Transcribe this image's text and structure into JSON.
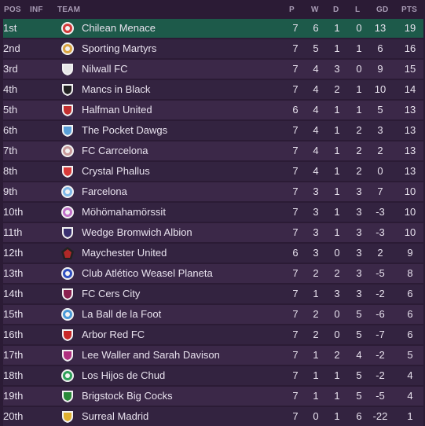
{
  "header": {
    "pos": "POS",
    "inf": "INF",
    "team": "TEAM",
    "p": "P",
    "w": "W",
    "d": "D",
    "l": "L",
    "gd": "GD",
    "pts": "PTS"
  },
  "rows": [
    {
      "pos": "1st",
      "team": "Chilean Menace",
      "p": "7",
      "w": "6",
      "d": "1",
      "l": "0",
      "gd": "13",
      "pts": "19",
      "icon": "target-badge-icon",
      "color": "#d23a3a"
    },
    {
      "pos": "2nd",
      "team": "Sporting Martyrs",
      "p": "7",
      "w": "5",
      "d": "1",
      "l": "1",
      "gd": "6",
      "pts": "16",
      "icon": "sun-badge-icon",
      "color": "#d9a441"
    },
    {
      "pos": "3rd",
      "team": "Nilwall FC",
      "p": "7",
      "w": "4",
      "d": "3",
      "l": "0",
      "gd": "9",
      "pts": "15",
      "icon": "striped-shield-icon",
      "color": "#e6e6e6"
    },
    {
      "pos": "4th",
      "team": "Mancs in Black",
      "p": "7",
      "w": "4",
      "d": "2",
      "l": "1",
      "gd": "10",
      "pts": "14",
      "icon": "split-shield-icon",
      "color": "#222222"
    },
    {
      "pos": "5th",
      "team": "Halfman United",
      "p": "6",
      "w": "4",
      "d": "1",
      "l": "1",
      "gd": "5",
      "pts": "13",
      "icon": "diagonal-shield-icon",
      "color": "#c23030"
    },
    {
      "pos": "6th",
      "team": "The Pocket Dawgs",
      "p": "7",
      "w": "4",
      "d": "1",
      "l": "2",
      "gd": "3",
      "pts": "13",
      "icon": "diagonal-shield-icon",
      "color": "#5aa0d8"
    },
    {
      "pos": "7th",
      "team": "FC Carrcelona",
      "p": "7",
      "w": "4",
      "d": "1",
      "l": "2",
      "gd": "2",
      "pts": "13",
      "icon": "ring-badge-icon",
      "color": "#c89a9a"
    },
    {
      "pos": "8th",
      "team": "Crystal Phallus",
      "p": "7",
      "w": "4",
      "d": "1",
      "l": "2",
      "gd": "0",
      "pts": "13",
      "icon": "crest-shield-icon",
      "color": "#d83a3a"
    },
    {
      "pos": "9th",
      "team": "Farcelona",
      "p": "7",
      "w": "3",
      "d": "1",
      "l": "3",
      "gd": "7",
      "pts": "10",
      "icon": "round-badge-icon",
      "color": "#7fb8e8"
    },
    {
      "pos": "10th",
      "team": "Möhömahamörssit",
      "p": "7",
      "w": "3",
      "d": "1",
      "l": "3",
      "gd": "-3",
      "pts": "10",
      "icon": "ring-badge-icon",
      "color": "#c070c8"
    },
    {
      "pos": "11th",
      "team": "Wedge Bromwich Albion",
      "p": "7",
      "w": "3",
      "d": "1",
      "l": "3",
      "gd": "-3",
      "pts": "10",
      "icon": "wedge-shield-icon",
      "color": "#3a3070"
    },
    {
      "pos": "12th",
      "team": "Maychester United",
      "p": "6",
      "w": "3",
      "d": "0",
      "l": "3",
      "gd": "2",
      "pts": "9",
      "icon": "pentagon-badge-icon",
      "color": "#b02828"
    },
    {
      "pos": "13th",
      "team": "Club Atlético Weasel Planeta",
      "p": "7",
      "w": "2",
      "d": "2",
      "l": "3",
      "gd": "-5",
      "pts": "8",
      "icon": "round-badge-icon",
      "color": "#3050c0"
    },
    {
      "pos": "14th",
      "team": "FC Cers City",
      "p": "7",
      "w": "1",
      "d": "3",
      "l": "3",
      "gd": "-2",
      "pts": "6",
      "icon": "square-shield-icon",
      "color": "#8a2050"
    },
    {
      "pos": "15th",
      "team": "La Ball de la Foot",
      "p": "7",
      "w": "2",
      "d": "0",
      "l": "5",
      "gd": "-6",
      "pts": "6",
      "icon": "ship-badge-icon",
      "color": "#4a9ad8"
    },
    {
      "pos": "16th",
      "team": "Arbor Red FC",
      "p": "7",
      "w": "2",
      "d": "0",
      "l": "5",
      "gd": "-7",
      "pts": "6",
      "icon": "crest-shield-icon",
      "color": "#c82828"
    },
    {
      "pos": "17th",
      "team": "Lee Waller and Sarah Davison",
      "p": "7",
      "w": "1",
      "d": "2",
      "l": "4",
      "gd": "-2",
      "pts": "5",
      "icon": "diamond-shield-icon",
      "color": "#b03080"
    },
    {
      "pos": "18th",
      "team": "Los Hijos de Chud",
      "p": "7",
      "w": "1",
      "d": "1",
      "l": "5",
      "gd": "-2",
      "pts": "4",
      "icon": "round-badge-icon",
      "color": "#2fa05a"
    },
    {
      "pos": "19th",
      "team": "Brigstock Big Cocks",
      "p": "7",
      "w": "1",
      "d": "1",
      "l": "5",
      "gd": "-5",
      "pts": "4",
      "icon": "square-shield-icon",
      "color": "#2a8a3a"
    },
    {
      "pos": "20th",
      "team": "Surreal Madrid",
      "p": "7",
      "w": "0",
      "d": "1",
      "l": "6",
      "gd": "-22",
      "pts": "1",
      "icon": "crest-shield-icon",
      "color": "#e0b030"
    }
  ]
}
